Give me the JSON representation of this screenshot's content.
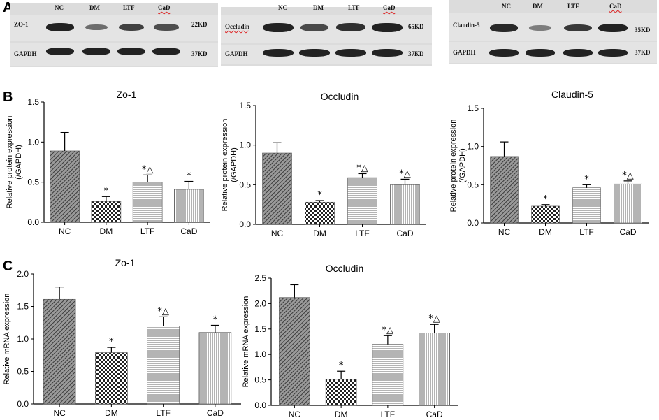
{
  "panel_labels": {
    "a": "A",
    "b": "B",
    "c": "C"
  },
  "blots": [
    {
      "lanes": [
        "NC",
        "DM",
        "LTF",
        "CaD"
      ],
      "rows": [
        {
          "name": "ZO-1",
          "size": "22KD",
          "intensity": [
            0.95,
            0.45,
            0.75,
            0.65
          ]
        },
        {
          "name": "GAPDH",
          "size": "37KD",
          "intensity": [
            0.95,
            0.95,
            0.95,
            0.95
          ]
        }
      ]
    },
    {
      "lanes": [
        "NC",
        "DM",
        "LTF",
        "CaD"
      ],
      "rows": [
        {
          "name": "Occludin",
          "size": "65KD",
          "intensity": [
            0.95,
            0.7,
            0.85,
            0.95
          ]
        },
        {
          "name": "GAPDH",
          "size": "37KD",
          "intensity": [
            0.95,
            0.95,
            0.95,
            0.95
          ]
        }
      ]
    },
    {
      "lanes": [
        "NC",
        "DM",
        "LTF",
        "CaD"
      ],
      "rows": [
        {
          "name": "Claudin-5",
          "size": "35KD",
          "intensity": [
            0.9,
            0.35,
            0.8,
            0.95
          ]
        },
        {
          "name": "GAPDH",
          "size": "37KD",
          "intensity": [
            0.95,
            0.95,
            0.95,
            0.95
          ]
        }
      ]
    }
  ],
  "chart_data": [
    {
      "type": "bar",
      "title": "Zo-1",
      "ylabel": "Relative protein expression\n(/GAPDH)",
      "categories": [
        "NC",
        "DM",
        "LTF",
        "CaD"
      ],
      "values": [
        0.89,
        0.26,
        0.5,
        0.41
      ],
      "errors": [
        0.23,
        0.06,
        0.09,
        0.1
      ],
      "annotations": [
        "",
        "*",
        "*△",
        "*"
      ],
      "ylim": [
        0,
        1.5
      ],
      "yticks": [
        "0.0",
        "0.5",
        "1.0",
        "1.5"
      ],
      "tick_values": [
        0,
        0.5,
        1.0,
        1.5
      ]
    },
    {
      "type": "bar",
      "title": "Occludin",
      "ylabel": "Relative protein expression\n(/GAPDH)",
      "categories": [
        "NC",
        "DM",
        "LTF",
        "CaD"
      ],
      "values": [
        0.9,
        0.28,
        0.59,
        0.5
      ],
      "errors": [
        0.13,
        0.02,
        0.05,
        0.07
      ],
      "annotations": [
        "",
        "*",
        "*△",
        "*△"
      ],
      "ylim": [
        0,
        1.5
      ],
      "yticks": [
        "0.0",
        "0.5",
        "1.0",
        "1.5"
      ],
      "tick_values": [
        0,
        0.5,
        1.0,
        1.5
      ]
    },
    {
      "type": "bar",
      "title": "Claudin-5",
      "ylabel": "Relative protein expression\n(/GAPDH)",
      "categories": [
        "NC",
        "DM",
        "LTF",
        "CaD"
      ],
      "values": [
        0.87,
        0.22,
        0.46,
        0.51
      ],
      "errors": [
        0.19,
        0.02,
        0.04,
        0.04
      ],
      "annotations": [
        "",
        "*",
        "*",
        "*△"
      ],
      "ylim": [
        0,
        1.5
      ],
      "yticks": [
        "0.0",
        "0.5",
        "1.0",
        "1.5"
      ],
      "tick_values": [
        0,
        0.5,
        1.0,
        1.5
      ]
    },
    {
      "type": "bar",
      "title": "Zo-1",
      "ylabel": "Relative mRNA expression",
      "categories": [
        "NC",
        "DM",
        "LTF",
        "CaD"
      ],
      "values": [
        1.61,
        0.79,
        1.2,
        1.1
      ],
      "errors": [
        0.19,
        0.08,
        0.14,
        0.11
      ],
      "annotations": [
        "",
        "*",
        "*△",
        "*"
      ],
      "ylim": [
        0,
        2.0
      ],
      "yticks": [
        "0.0",
        "0.5",
        "1.0",
        "1.5",
        "2.0"
      ],
      "tick_values": [
        0,
        0.5,
        1.0,
        1.5,
        2.0
      ]
    },
    {
      "type": "bar",
      "title": "Occludin",
      "ylabel": "Relative mRNA expression",
      "categories": [
        "NC",
        "DM",
        "LTF",
        "CaD"
      ],
      "values": [
        2.12,
        0.51,
        1.2,
        1.42
      ],
      "errors": [
        0.25,
        0.16,
        0.17,
        0.17
      ],
      "annotations": [
        "",
        "*",
        "*△",
        "*△"
      ],
      "ylim": [
        0,
        2.5
      ],
      "yticks": [
        "0.0",
        "0.5",
        "1.0",
        "1.5",
        "2.0",
        "2.5"
      ],
      "tick_values": [
        0,
        0.5,
        1.0,
        1.5,
        2.0,
        2.5
      ]
    }
  ]
}
